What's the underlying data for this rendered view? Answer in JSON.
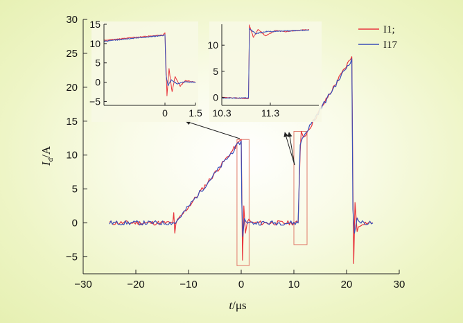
{
  "chart_data": [
    {
      "id": "main",
      "type": "line",
      "title": "",
      "xlabel": {
        "var": "t",
        "unit": "/μs"
      },
      "ylabel": {
        "var": "I",
        "sub": "d",
        "unit": "/A"
      },
      "xlim": [
        -30,
        30
      ],
      "ylim": [
        -7.5,
        30
      ],
      "xticks": [
        -30,
        -20,
        -10,
        0,
        10,
        20,
        30
      ],
      "yticks": [
        -5,
        0,
        5,
        10,
        15,
        20,
        25,
        30
      ],
      "xtick_labels": [
        "−30",
        "−20",
        "−10",
        "0",
        "10",
        "20",
        "30"
      ],
      "ytick_labels": [
        "−5",
        "0",
        "5",
        "10",
        "15",
        "20",
        "25",
        "30"
      ],
      "legend_position": "top-right",
      "series": [
        {
          "name": "I1;",
          "color": "#e8343c",
          "points": [
            [
              -25,
              0
            ],
            [
              -13,
              0
            ],
            [
              -12.8,
              1.5
            ],
            [
              -12.6,
              -1.5
            ],
            [
              -12.4,
              0
            ],
            [
              0,
              12.3
            ],
            [
              0.1,
              5.5
            ],
            [
              0.25,
              -5.5
            ],
            [
              0.5,
              2.5
            ],
            [
              0.8,
              -1.5
            ],
            [
              1.2,
              0.5
            ],
            [
              2,
              0
            ],
            [
              10.8,
              0
            ],
            [
              11.2,
              10.5
            ],
            [
              11.4,
              13.5
            ],
            [
              11.8,
              12.5
            ],
            [
              21,
              24.5
            ],
            [
              21.2,
              6
            ],
            [
              21.35,
              -6
            ],
            [
              21.6,
              3
            ],
            [
              22,
              -1
            ],
            [
              23,
              0
            ],
            [
              25,
              0
            ]
          ]
        },
        {
          "name": "I17",
          "color": "#3b4fb8",
          "points": [
            [
              -25,
              0
            ],
            [
              -13,
              0
            ],
            [
              -12.5,
              0
            ],
            [
              0,
              12.1
            ],
            [
              0.1,
              3
            ],
            [
              0.3,
              -2
            ],
            [
              0.6,
              0.5
            ],
            [
              1.5,
              0
            ],
            [
              10.8,
              0
            ],
            [
              11.2,
              11.5
            ],
            [
              11.6,
              12.5
            ],
            [
              21,
              24.2
            ],
            [
              21.2,
              2
            ],
            [
              21.5,
              -1.5
            ],
            [
              22,
              0.5
            ],
            [
              23,
              0
            ],
            [
              25,
              0
            ]
          ]
        }
      ],
      "highlight_boxes": [
        {
          "x": [
            -0.8,
            1.5
          ],
          "y": [
            -6.3,
            12.3
          ]
        },
        {
          "x": [
            10,
            12.5
          ],
          "y": [
            -3.2,
            13.5
          ]
        }
      ]
    },
    {
      "id": "inset-left",
      "type": "line",
      "xlim": [
        -3,
        1.5
      ],
      "ylim": [
        -6,
        15
      ],
      "xticks": [
        0,
        1.5
      ],
      "yticks": [
        -5,
        0,
        5,
        10,
        15
      ],
      "xtick_labels": [
        "0",
        "1.5"
      ],
      "ytick_labels": [
        "−5",
        "0",
        "5",
        "10",
        "15"
      ],
      "series": [
        {
          "name": "I1;",
          "color": "#e8343c",
          "points": [
            [
              -3,
              10.8
            ],
            [
              -1.5,
              11.6
            ],
            [
              -0.1,
              12.2
            ],
            [
              0,
              12.8
            ],
            [
              0.05,
              4.5
            ],
            [
              0.1,
              -3.5
            ],
            [
              0.2,
              3.5
            ],
            [
              0.35,
              -2.5
            ],
            [
              0.5,
              1.5
            ],
            [
              0.75,
              -1
            ],
            [
              1,
              0.4
            ],
            [
              1.5,
              0
            ]
          ]
        },
        {
          "name": "I17",
          "color": "#3b4fb8",
          "points": [
            [
              -3,
              10.6
            ],
            [
              -1.5,
              11.4
            ],
            [
              -0.1,
              12.1
            ],
            [
              0,
              12.3
            ],
            [
              0.05,
              2
            ],
            [
              0.15,
              -1
            ],
            [
              0.3,
              0.6
            ],
            [
              0.6,
              -0.4
            ],
            [
              1,
              0.1
            ],
            [
              1.5,
              0
            ]
          ]
        }
      ]
    },
    {
      "id": "inset-right",
      "type": "line",
      "xlim": [
        10.3,
        12.3
      ],
      "ylim": [
        -1.5,
        14
      ],
      "xticks": [
        10.3,
        11.3
      ],
      "yticks": [
        0,
        5,
        10
      ],
      "xtick_labels": [
        "10.3",
        "11.3"
      ],
      "ytick_labels": [
        "0",
        "5",
        "10"
      ],
      "series": [
        {
          "name": "I1;",
          "color": "#e8343c",
          "points": [
            [
              10.3,
              0
            ],
            [
              10.85,
              -0.2
            ],
            [
              10.87,
              13.8
            ],
            [
              10.95,
              11.5
            ],
            [
              11.05,
              13
            ],
            [
              11.2,
              11.8
            ],
            [
              11.4,
              12.8
            ],
            [
              11.6,
              12.6
            ],
            [
              12.1,
              13
            ]
          ]
        },
        {
          "name": "I17",
          "color": "#3b4fb8",
          "points": [
            [
              10.3,
              -0.1
            ],
            [
              10.85,
              -0.1
            ],
            [
              10.87,
              13.2
            ],
            [
              11,
              12.2
            ],
            [
              11.2,
              12.6
            ],
            [
              11.6,
              12.7
            ],
            [
              12.1,
              12.9
            ]
          ]
        }
      ]
    }
  ]
}
